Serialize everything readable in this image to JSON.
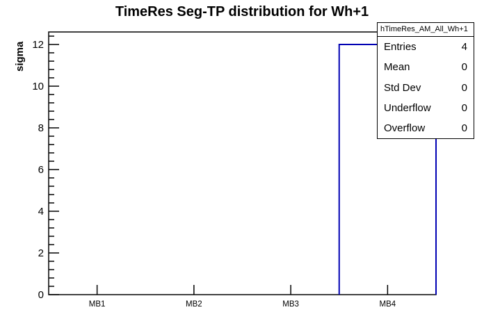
{
  "title": "TimeRes Seg-TP distribution for Wh+1",
  "y_axis": {
    "title": "sigma"
  },
  "stats": {
    "title": "hTimeRes_AM_All_Wh+1",
    "rows": [
      {
        "label": "Entries",
        "value": "4"
      },
      {
        "label": "Mean",
        "value": "0"
      },
      {
        "label": "Std Dev",
        "value": "0"
      },
      {
        "label": "Underflow",
        "value": "0"
      },
      {
        "label": "Overflow",
        "value": "0"
      }
    ]
  },
  "colors": {
    "bar_line": "#0000b3",
    "frame": "#000000",
    "background": "#ffffff"
  },
  "chart_data": {
    "type": "bar",
    "style": "root-histogram-outline",
    "title": "TimeRes Seg-TP distribution for Wh+1",
    "xlabel": "",
    "ylabel": "sigma",
    "categories": [
      "MB1",
      "MB2",
      "MB3",
      "MB4"
    ],
    "values": [
      0,
      0,
      0,
      12
    ],
    "ylim": [
      0,
      12.6
    ],
    "y_major_ticks": [
      0,
      2,
      4,
      6,
      8,
      10,
      12
    ],
    "y_minor_step": 0.4,
    "grid": false,
    "legend": "none",
    "stats_box": {
      "name": "hTimeRes_AM_All_Wh+1",
      "entries": 4,
      "mean": 0,
      "std_dev": 0,
      "underflow": 0,
      "overflow": 0
    }
  }
}
